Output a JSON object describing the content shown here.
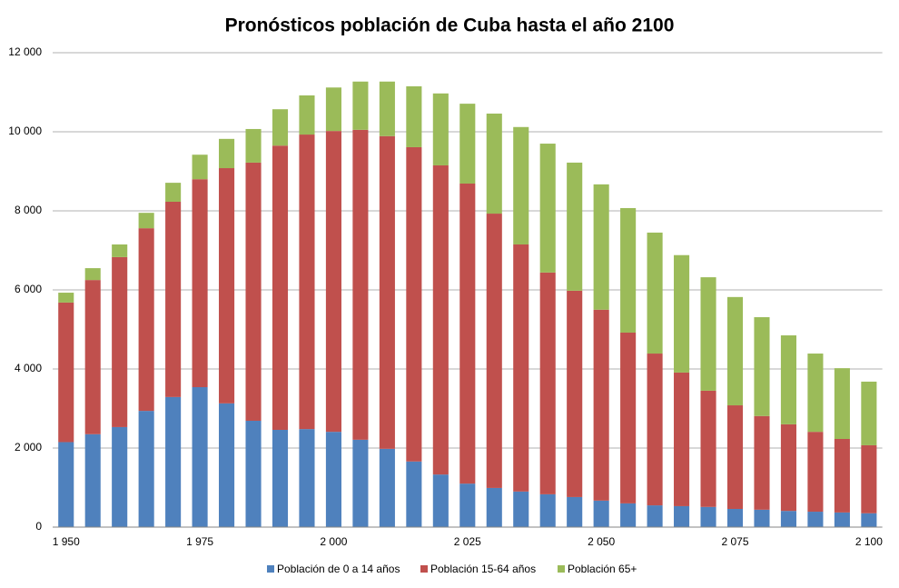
{
  "chart_data": {
    "type": "stacked_bar",
    "title": "Pronósticos población de Cuba hasta el año 2100",
    "categories": [
      "1 950",
      null,
      null,
      null,
      null,
      "1 975",
      null,
      null,
      null,
      null,
      "2 000",
      null,
      null,
      null,
      null,
      "2 025",
      null,
      null,
      null,
      null,
      "2 050",
      null,
      null,
      null,
      null,
      "2 075",
      null,
      null,
      null,
      null,
      "2 100"
    ],
    "series": [
      {
        "name": "Población de 0 a 14 años",
        "color": "#4f81bd",
        "values": [
          2150,
          2350,
          2530,
          2940,
          3290,
          3540,
          3130,
          2690,
          2460,
          2480,
          2410,
          2210,
          1980,
          1660,
          1330,
          1100,
          990,
          900,
          830,
          760,
          670,
          600,
          550,
          530,
          510,
          460,
          440,
          410,
          390,
          370,
          350
        ]
      },
      {
        "name": "Población 15-64 años",
        "color": "#c0504d",
        "values": [
          3530,
          3900,
          4300,
          4620,
          4940,
          5260,
          5950,
          6530,
          7190,
          7450,
          7610,
          7840,
          7910,
          7950,
          7820,
          7590,
          6940,
          6250,
          5610,
          5220,
          4830,
          4320,
          3840,
          3380,
          2940,
          2620,
          2370,
          2190,
          2020,
          1860,
          1720
        ]
      },
      {
        "name": "Población 65+",
        "color": "#9bbb59",
        "values": [
          250,
          300,
          320,
          390,
          480,
          620,
          740,
          850,
          920,
          990,
          1100,
          1220,
          1380,
          1540,
          1820,
          2020,
          2530,
          2970,
          3260,
          3240,
          3170,
          3150,
          3060,
          2970,
          2870,
          2740,
          2500,
          2250,
          1980,
          1790,
          1610
        ]
      }
    ],
    "ylim": [
      0,
      12000
    ],
    "yticks": [
      {
        "value": 0,
        "label": "0"
      },
      {
        "value": 2000,
        "label": "2 000"
      },
      {
        "value": 4000,
        "label": "4 000"
      },
      {
        "value": 6000,
        "label": "6 000"
      },
      {
        "value": 8000,
        "label": "8 000"
      },
      {
        "value": 10000,
        "label": "10 000"
      },
      {
        "value": 12000,
        "label": "12 000"
      }
    ],
    "grid": true,
    "legend": "bottom"
  }
}
